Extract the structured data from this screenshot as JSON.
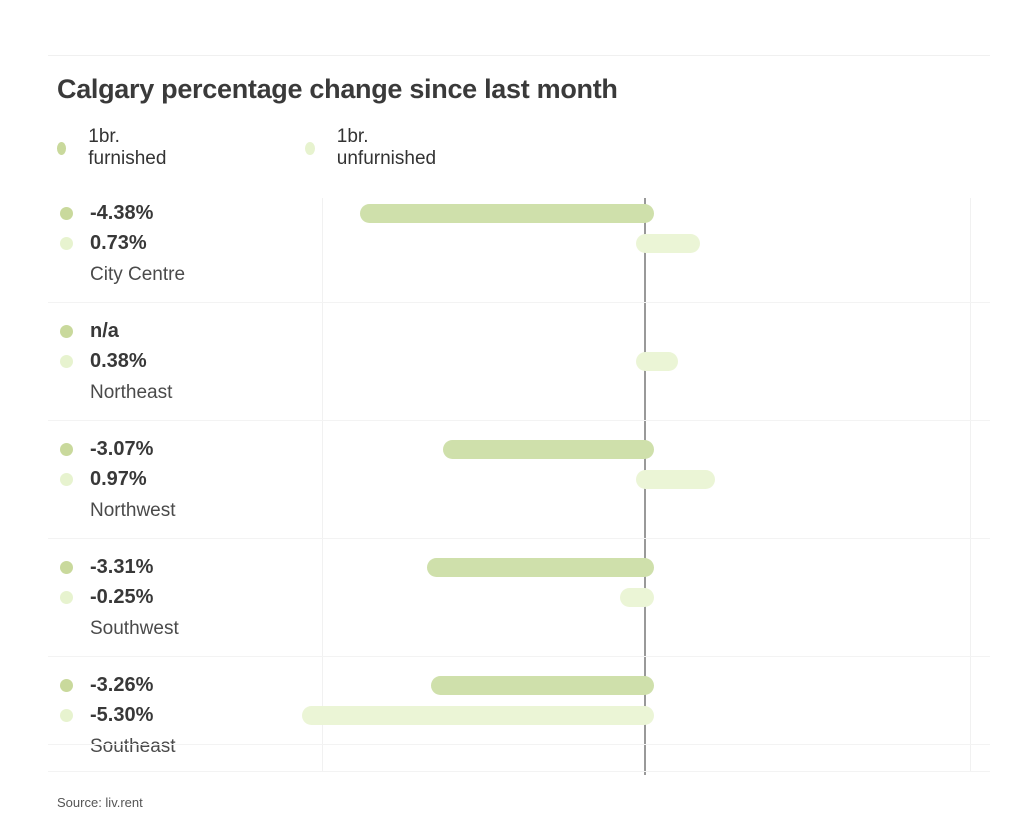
{
  "title": "Calgary percentage change since last month",
  "legend": [
    {
      "label": "1br. furnished",
      "color": "#c9d99c"
    },
    {
      "label": "1br. unfurnished",
      "color": "#e7f3cf"
    }
  ],
  "source": "Source: liv.rent",
  "colors": {
    "furnished_bar": "#cfe0ab",
    "unfurnished_bar": "#ebf5d6",
    "furnished_dot": "#c9d99c",
    "unfurnished_dot": "#e7f3cf",
    "axis_line": "#999999",
    "grid_line": "#f1f1f1",
    "value_text": "#383838",
    "area_text": "#4a4a4a"
  },
  "chart_data": {
    "type": "bar",
    "orientation": "horizontal",
    "title": "Calgary percentage change since last month",
    "categories": [
      "City Centre",
      "Northeast",
      "Northwest",
      "Southwest",
      "Southeast"
    ],
    "series": [
      {
        "name": "1br. furnished",
        "values": [
          -4.38,
          null,
          -3.07,
          -3.31,
          -3.26
        ],
        "labels": [
          "-4.38%",
          "n/a",
          "-3.07%",
          "-3.31%",
          "-3.26%"
        ],
        "color": "#cfe0ab",
        "dot_color": "#c9d99c"
      },
      {
        "name": "1br. unfurnished",
        "values": [
          0.73,
          0.38,
          0.97,
          -0.25,
          -5.3
        ],
        "labels": [
          "0.73%",
          "0.38%",
          "0.97%",
          "-0.25%",
          "-5.30%"
        ],
        "color": "#ebf5d6",
        "dot_color": "#e7f3cf"
      }
    ],
    "baseline": 0,
    "xlim": [
      -5.5,
      5.2
    ],
    "grid": "minimal",
    "legend_position": "top",
    "value_labels_position": "left"
  }
}
